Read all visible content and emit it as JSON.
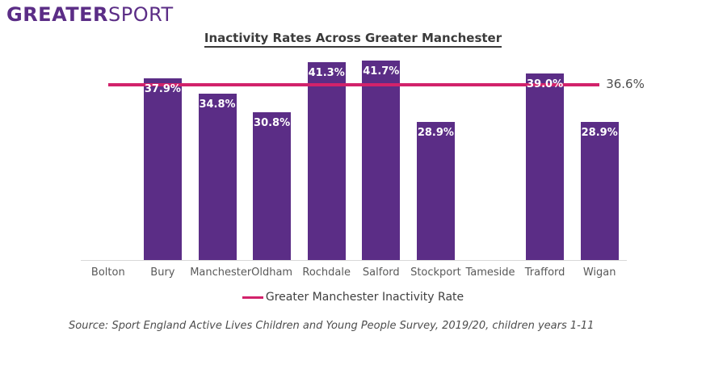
{
  "logo": {
    "bold": "GREATER",
    "light": "SPORT"
  },
  "chart_data": {
    "type": "bar",
    "title": "Inactivity Rates Across Greater Manchester",
    "categories": [
      "Bolton",
      "Bury",
      "Manchester",
      "Oldham",
      "Rochdale",
      "Salford",
      "Stockport",
      "Tameside",
      "Trafford",
      "Wigan"
    ],
    "values": [
      null,
      37.9,
      34.8,
      30.8,
      41.3,
      41.7,
      28.9,
      null,
      39.0,
      28.9
    ],
    "data_labels": [
      "",
      "37.9%",
      "34.8%",
      "30.8%",
      "41.3%",
      "41.7%",
      "28.9%",
      "",
      "39.0%",
      "28.9%"
    ],
    "xlabel": "",
    "ylabel": "",
    "ylim": [
      0,
      45
    ],
    "grid": false,
    "legend_position": "bottom",
    "reference_line": {
      "value": 36.6,
      "label": "36.6%",
      "name": "Greater Manchester Inactivity Rate"
    }
  },
  "colors": {
    "bar": "#5b2d86",
    "reference_line": "#d2226b",
    "logo": "#5b2d86",
    "title": "#3b3b3b",
    "axis_label": "#595959",
    "axis_line": "#d9d9d9",
    "data_label": "#ffffff"
  },
  "footer": {
    "source": "Source: Sport England Active Lives Children and Young People Survey, 2019/20, children years 1-11"
  }
}
